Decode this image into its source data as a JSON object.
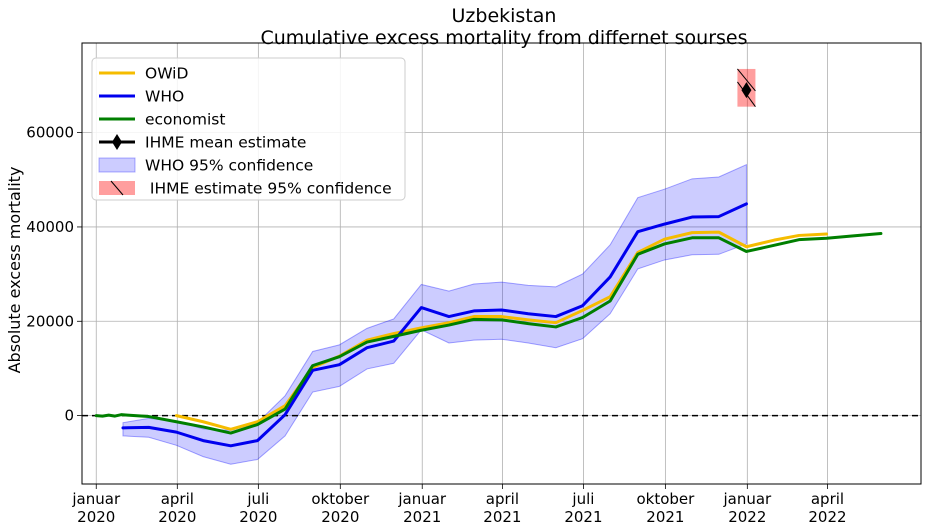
{
  "chart_data": {
    "type": "line",
    "title": "Uzbekistan",
    "subtitle": "Cumulative excess mortality from differnet sourses",
    "xlabel": "",
    "ylabel": "Absolute excess mortality",
    "xlim": [
      "2019-12-16",
      "2022-07-15"
    ],
    "ylim": [
      -14500,
      79000
    ],
    "grid": true,
    "legend_position": "top-left",
    "x_ticks": [
      {
        "date": "2020-01-01",
        "line1": "januar",
        "line2": "2020"
      },
      {
        "date": "2020-04-01",
        "line1": "april",
        "line2": "2020"
      },
      {
        "date": "2020-07-01",
        "line1": "juli",
        "line2": "2020"
      },
      {
        "date": "2020-10-01",
        "line1": "oktober",
        "line2": "2020"
      },
      {
        "date": "2021-01-01",
        "line1": "januar",
        "line2": "2021"
      },
      {
        "date": "2021-04-01",
        "line1": "april",
        "line2": "2021"
      },
      {
        "date": "2021-07-01",
        "line1": "juli",
        "line2": "2021"
      },
      {
        "date": "2021-10-01",
        "line1": "oktober",
        "line2": "2021"
      },
      {
        "date": "2022-01-01",
        "line1": "januar",
        "line2": "2022"
      },
      {
        "date": "2022-04-01",
        "line1": "april",
        "line2": "2022"
      }
    ],
    "y_ticks": [
      {
        "value": 0,
        "label": "0"
      },
      {
        "value": 20000,
        "label": "20000"
      },
      {
        "value": 40000,
        "label": "40000"
      },
      {
        "value": 60000,
        "label": "60000"
      }
    ],
    "reference_line": {
      "value": 0,
      "style": "dashed",
      "color": "#000000"
    },
    "series": [
      {
        "name": "OWiD",
        "color": "#f5bc00",
        "points": [
          {
            "x": "2020-03-31",
            "y": 0
          },
          {
            "x": "2020-04-30",
            "y": -1300
          },
          {
            "x": "2020-05-31",
            "y": -2900
          },
          {
            "x": "2020-06-30",
            "y": -1300
          },
          {
            "x": "2020-07-31",
            "y": 2100
          },
          {
            "x": "2020-08-31",
            "y": 10200
          },
          {
            "x": "2020-09-30",
            "y": 12600
          },
          {
            "x": "2020-10-31",
            "y": 16000
          },
          {
            "x": "2020-11-30",
            "y": 17400
          },
          {
            "x": "2020-12-31",
            "y": 18600
          },
          {
            "x": "2021-01-31",
            "y": 19700
          },
          {
            "x": "2021-02-28",
            "y": 21000
          },
          {
            "x": "2021-03-31",
            "y": 21000
          },
          {
            "x": "2021-04-30",
            "y": 20300
          },
          {
            "x": "2021-05-31",
            "y": 19700
          },
          {
            "x": "2021-06-30",
            "y": 22300
          },
          {
            "x": "2021-07-31",
            "y": 25200
          },
          {
            "x": "2021-08-31",
            "y": 34600
          },
          {
            "x": "2021-09-30",
            "y": 37400
          },
          {
            "x": "2021-10-31",
            "y": 38800
          },
          {
            "x": "2021-11-30",
            "y": 38900
          },
          {
            "x": "2021-12-31",
            "y": 35800
          },
          {
            "x": "2022-01-31",
            "y": 37200
          },
          {
            "x": "2022-02-28",
            "y": 38200
          },
          {
            "x": "2022-03-31",
            "y": 38500
          }
        ]
      },
      {
        "name": "WHO",
        "color": "#0000ee",
        "points": [
          {
            "x": "2020-01-31",
            "y": -2600
          },
          {
            "x": "2020-02-29",
            "y": -2500
          },
          {
            "x": "2020-03-31",
            "y": -3500
          },
          {
            "x": "2020-04-30",
            "y": -5300
          },
          {
            "x": "2020-05-31",
            "y": -6400
          },
          {
            "x": "2020-06-30",
            "y": -5300
          },
          {
            "x": "2020-07-31",
            "y": 200
          },
          {
            "x": "2020-08-31",
            "y": 9600
          },
          {
            "x": "2020-09-30",
            "y": 10800
          },
          {
            "x": "2020-10-31",
            "y": 14400
          },
          {
            "x": "2020-11-30",
            "y": 15800
          },
          {
            "x": "2020-12-31",
            "y": 22900
          },
          {
            "x": "2021-01-31",
            "y": 21000
          },
          {
            "x": "2021-02-28",
            "y": 22200
          },
          {
            "x": "2021-03-31",
            "y": 22400
          },
          {
            "x": "2021-04-30",
            "y": 21600
          },
          {
            "x": "2021-05-31",
            "y": 21000
          },
          {
            "x": "2021-06-30",
            "y": 23300
          },
          {
            "x": "2021-07-31",
            "y": 29400
          },
          {
            "x": "2021-08-31",
            "y": 39000
          },
          {
            "x": "2021-09-30",
            "y": 40600
          },
          {
            "x": "2021-10-31",
            "y": 42100
          },
          {
            "x": "2021-11-30",
            "y": 42200
          },
          {
            "x": "2021-12-31",
            "y": 44900
          }
        ]
      },
      {
        "name": "economist",
        "color": "#007f00",
        "points": [
          {
            "x": "2020-01-01",
            "y": 0
          },
          {
            "x": "2020-01-08",
            "y": -100
          },
          {
            "x": "2020-01-15",
            "y": 100
          },
          {
            "x": "2020-01-22",
            "y": -100
          },
          {
            "x": "2020-01-29",
            "y": 200
          },
          {
            "x": "2020-02-05",
            "y": 100
          },
          {
            "x": "2020-02-29",
            "y": -200
          },
          {
            "x": "2020-03-31",
            "y": -1300
          },
          {
            "x": "2020-04-30",
            "y": -2400
          },
          {
            "x": "2020-05-31",
            "y": -3700
          },
          {
            "x": "2020-06-30",
            "y": -1900
          },
          {
            "x": "2020-07-31",
            "y": 1400
          },
          {
            "x": "2020-08-31",
            "y": 10600
          },
          {
            "x": "2020-09-30",
            "y": 12500
          },
          {
            "x": "2020-10-31",
            "y": 15600
          },
          {
            "x": "2020-11-30",
            "y": 16800
          },
          {
            "x": "2020-12-31",
            "y": 18100
          },
          {
            "x": "2021-01-31",
            "y": 19200
          },
          {
            "x": "2021-02-28",
            "y": 20400
          },
          {
            "x": "2021-03-31",
            "y": 20300
          },
          {
            "x": "2021-04-30",
            "y": 19500
          },
          {
            "x": "2021-05-31",
            "y": 18800
          },
          {
            "x": "2021-06-30",
            "y": 20800
          },
          {
            "x": "2021-07-31",
            "y": 24300
          },
          {
            "x": "2021-08-31",
            "y": 34200
          },
          {
            "x": "2021-09-30",
            "y": 36400
          },
          {
            "x": "2021-10-31",
            "y": 37700
          },
          {
            "x": "2021-11-30",
            "y": 37700
          },
          {
            "x": "2021-12-31",
            "y": 34800
          },
          {
            "x": "2022-01-31",
            "y": 36100
          },
          {
            "x": "2022-02-28",
            "y": 37300
          },
          {
            "x": "2022-03-31",
            "y": 37600
          },
          {
            "x": "2022-04-30",
            "y": 38100
          },
          {
            "x": "2022-05-31",
            "y": 38600
          }
        ]
      }
    ],
    "who_confidence": {
      "name": "WHO 95% confidence",
      "color": "#0000ff",
      "opacity": 0.2,
      "points": [
        {
          "x": "2020-01-31",
          "lo": -4300,
          "hi": -1500
        },
        {
          "x": "2020-02-29",
          "lo": -4600,
          "hi": -600
        },
        {
          "x": "2020-03-31",
          "lo": -6300,
          "hi": -1200
        },
        {
          "x": "2020-04-30",
          "lo": -8700,
          "hi": -2800
        },
        {
          "x": "2020-05-31",
          "lo": -10300,
          "hi": -3100
        },
        {
          "x": "2020-06-30",
          "lo": -9300,
          "hi": -1500
        },
        {
          "x": "2020-07-31",
          "lo": -4300,
          "hi": 4200
        },
        {
          "x": "2020-08-31",
          "lo": 5000,
          "hi": 13600
        },
        {
          "x": "2020-09-30",
          "lo": 6200,
          "hi": 15000
        },
        {
          "x": "2020-10-31",
          "lo": 9900,
          "hi": 18500
        },
        {
          "x": "2020-11-30",
          "lo": 11100,
          "hi": 20500
        },
        {
          "x": "2020-12-31",
          "lo": 18200,
          "hi": 27800
        },
        {
          "x": "2021-01-31",
          "lo": 15400,
          "hi": 26400
        },
        {
          "x": "2021-02-28",
          "lo": 16000,
          "hi": 27900
        },
        {
          "x": "2021-03-31",
          "lo": 16200,
          "hi": 28300
        },
        {
          "x": "2021-04-30",
          "lo": 15400,
          "hi": 27600
        },
        {
          "x": "2021-05-31",
          "lo": 14400,
          "hi": 27300
        },
        {
          "x": "2021-06-30",
          "lo": 16300,
          "hi": 30000
        },
        {
          "x": "2021-07-31",
          "lo": 21600,
          "hi": 36200
        },
        {
          "x": "2021-08-31",
          "lo": 31100,
          "hi": 46200
        },
        {
          "x": "2021-09-30",
          "lo": 33000,
          "hi": 48000
        },
        {
          "x": "2021-10-31",
          "lo": 34100,
          "hi": 50200
        },
        {
          "x": "2021-11-30",
          "lo": 34200,
          "hi": 50600
        },
        {
          "x": "2021-12-31",
          "lo": 36400,
          "hi": 53200
        }
      ]
    },
    "ihme": {
      "mean_name": "IHME mean estimate",
      "ci_name": " IHME estimate 95% confidence",
      "x": "2021-12-31",
      "mean": 69000,
      "lo": 65500,
      "hi": 73500,
      "color": "#000000",
      "ci_color": "#ff0000"
    },
    "legend": [
      {
        "label": "OWiD",
        "kind": "line",
        "color": "#f5bc00"
      },
      {
        "label": "WHO",
        "kind": "line",
        "color": "#0000ee"
      },
      {
        "label": "economist",
        "kind": "line",
        "color": "#007f00"
      },
      {
        "label": "IHME mean estimate",
        "kind": "errorbar",
        "color": "#000000"
      },
      {
        "label": "WHO 95% confidence",
        "kind": "band",
        "color": "#0000ff"
      },
      {
        "label": " IHME estimate 95% confidence",
        "kind": "hatch",
        "color": "#ff0000"
      }
    ]
  }
}
